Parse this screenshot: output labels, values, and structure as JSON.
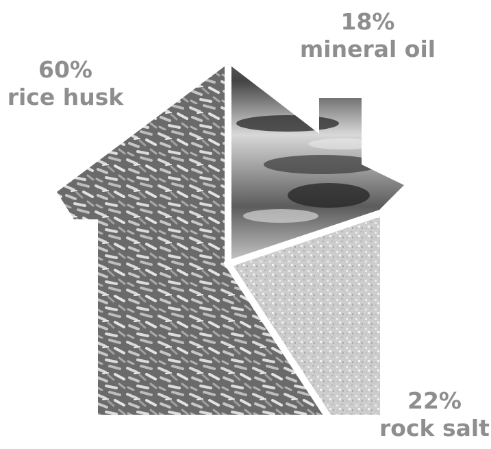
{
  "chart_data": {
    "type": "pie",
    "shape": "house",
    "slices": [
      {
        "pct_label": "60%",
        "name": "rice husk",
        "value": 60,
        "texture": "rice-husk"
      },
      {
        "pct_label": "18%",
        "name": "mineral oil",
        "value": 18,
        "texture": "mineral-oil"
      },
      {
        "pct_label": "22%",
        "name": "rock salt",
        "value": 22,
        "texture": "rock-salt"
      }
    ]
  },
  "colors": {
    "label": "#8e8e8e",
    "background": "#ffffff",
    "separator": "#ffffff"
  }
}
